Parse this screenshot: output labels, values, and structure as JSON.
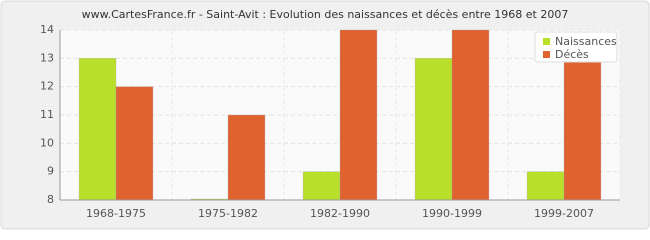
{
  "chart_data": {
    "type": "bar",
    "title": "www.CartesFrance.fr - Saint-Avit : Evolution des naissances et décès entre 1968 et 2007",
    "categories": [
      "1968-1975",
      "1975-1982",
      "1982-1990",
      "1990-1999",
      "1999-2007"
    ],
    "series": [
      {
        "name": "Naissances",
        "color": "#b8e02a",
        "values": [
          13,
          8,
          9,
          13,
          9
        ]
      },
      {
        "name": "Décès",
        "color": "#e0622f",
        "values": [
          12,
          11,
          14,
          14,
          13
        ]
      }
    ],
    "ylim": [
      8,
      14
    ],
    "yticks": [
      8,
      9,
      10,
      11,
      12,
      13,
      14
    ],
    "grid": true,
    "legend": "top-right"
  }
}
